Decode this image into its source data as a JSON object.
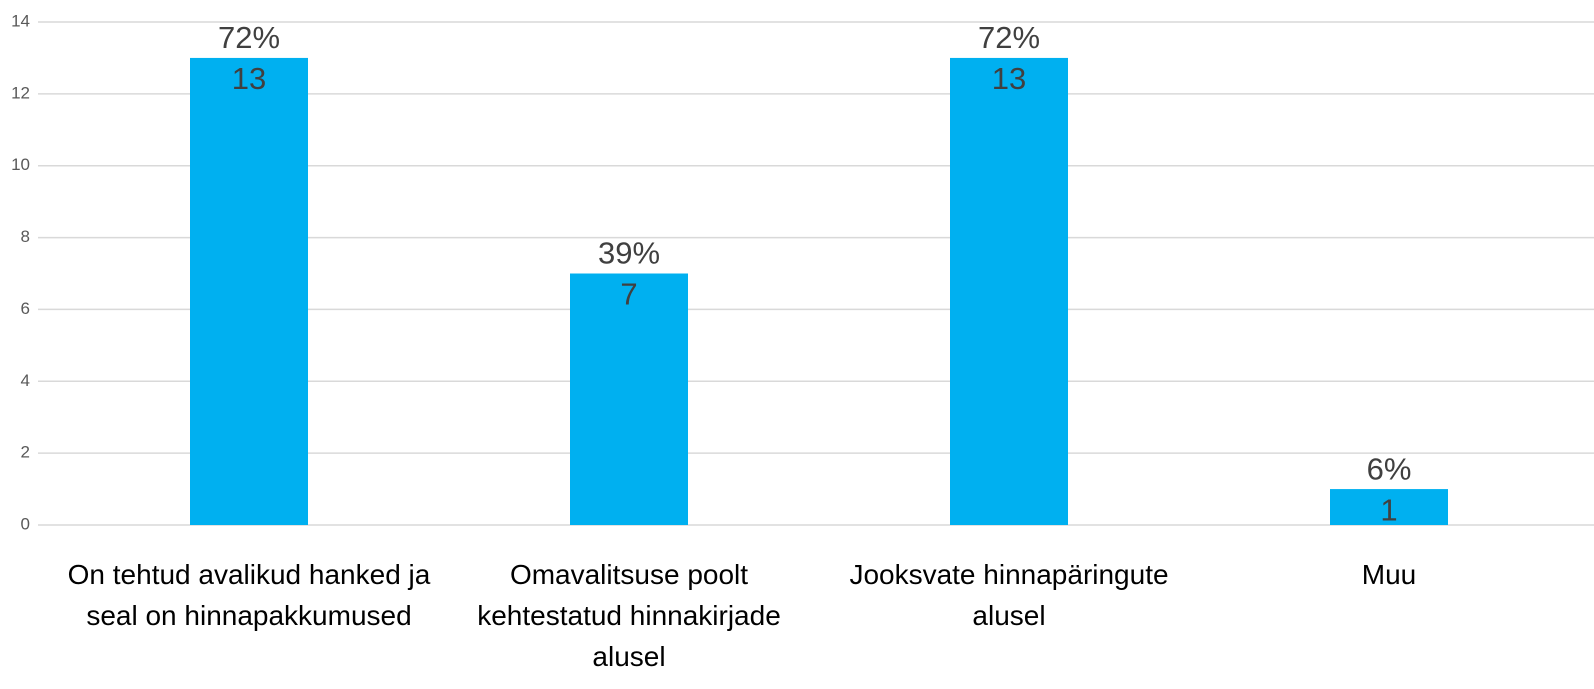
{
  "chart_data": {
    "type": "bar",
    "categories": [
      "On tehtud avalikud hanked ja seal on hinnapakkumused",
      "Omavalitsuse poolt kehtestatud hinnakirjade alusel",
      "Jooksvate hinnapäringute alusel",
      "Muu"
    ],
    "values": [
      13,
      7,
      13,
      1
    ],
    "percent_labels": [
      "72%",
      "39%",
      "72%",
      "6%"
    ],
    "color": "#00b0f0",
    "ylim": [
      0,
      14
    ],
    "yticks": [
      0,
      2,
      4,
      6,
      8,
      10,
      12,
      14
    ],
    "grid": true
  }
}
